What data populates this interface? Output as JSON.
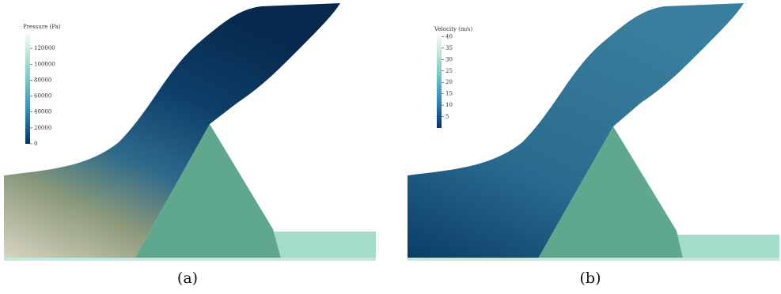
{
  "panels": [
    {
      "caption": "(a)",
      "colorbar": {
        "title": "Pressure (Pa)",
        "lim": [
          0,
          139000
        ],
        "ticks": [
          0,
          20000,
          40000,
          60000,
          80000,
          100000,
          120000
        ]
      }
    },
    {
      "caption": "(b)",
      "colorbar": {
        "title": "Velocity (m/s)",
        "lim": [
          0,
          40.5
        ],
        "ticks": [
          5,
          10,
          15,
          20,
          25,
          30,
          35,
          40
        ]
      }
    }
  ]
}
